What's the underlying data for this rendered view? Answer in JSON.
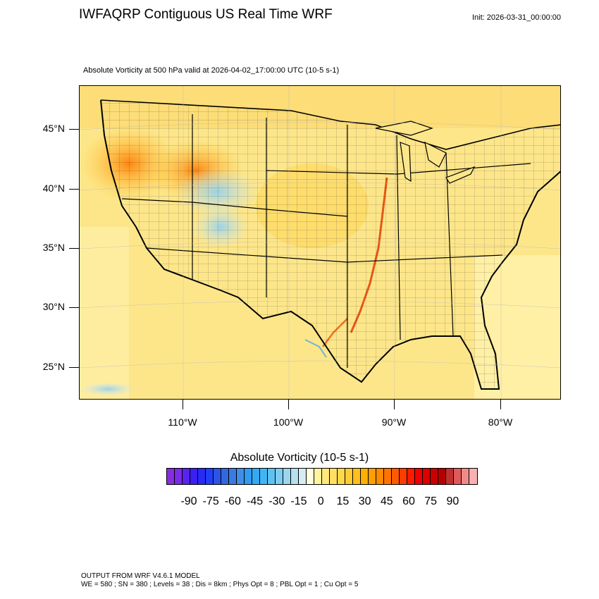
{
  "header": {
    "title": "IWFAQRP Contiguous US Real Time WRF",
    "init": "Init: 2026-03-31_00:00:00",
    "subtitle": "Absolute Vorticity at 500 hPa valid at 2026-04-02_17:00:00 UTC   (10-5 s-1)"
  },
  "map": {
    "latitudes": [
      "45°N",
      "40°N",
      "35°N",
      "30°N",
      "25°N"
    ],
    "longitudes": [
      "110°W",
      "100°W",
      "90°W",
      "80°W"
    ],
    "field": "absolute vorticity 500 hPa",
    "dominant_fill": "#fde68a",
    "notable_features": [
      "high vorticity band over Rocky Mountains",
      "convergence line over Mississippi valley"
    ]
  },
  "legend": {
    "title": "Absolute Vorticity  (10-5 s-1)",
    "labels": [
      "-90",
      "-75",
      "-60",
      "-45",
      "-30",
      "-15",
      "0",
      "15",
      "30",
      "45",
      "60",
      "75",
      "90"
    ],
    "colors": [
      "#8a2be2",
      "#7a2be8",
      "#5a22ee",
      "#3c1ff2",
      "#2a2af5",
      "#1f40f5",
      "#2c55e6",
      "#3068e0",
      "#3a7be2",
      "#3f8fe8",
      "#2f9bf2",
      "#35a8f5",
      "#40b6f5",
      "#5dc2f0",
      "#7ccdf0",
      "#9bd6ee",
      "#b6e0ee",
      "#d4ecf2",
      "#ffffe0",
      "#fff4a0",
      "#ffe97a",
      "#ffe060",
      "#ffd84a",
      "#ffcc33",
      "#ffbf1f",
      "#ffb000",
      "#ff9e00",
      "#ff8a00",
      "#ff7400",
      "#ff5a00",
      "#ff3c00",
      "#ff1a00",
      "#f00000",
      "#dc0000",
      "#c80000",
      "#b40000",
      "#c03030",
      "#e05a5a",
      "#f08a8a",
      "#f8b0b0"
    ]
  },
  "footer": {
    "line1": "OUTPUT FROM WRF V4.6.1 MODEL",
    "line2": "WE = 580 ; SN = 380 ; Levels = 38 ; Dis = 8km ; Phys Opt = 8 ; PBL Opt = 1 ; Cu Opt = 5"
  }
}
